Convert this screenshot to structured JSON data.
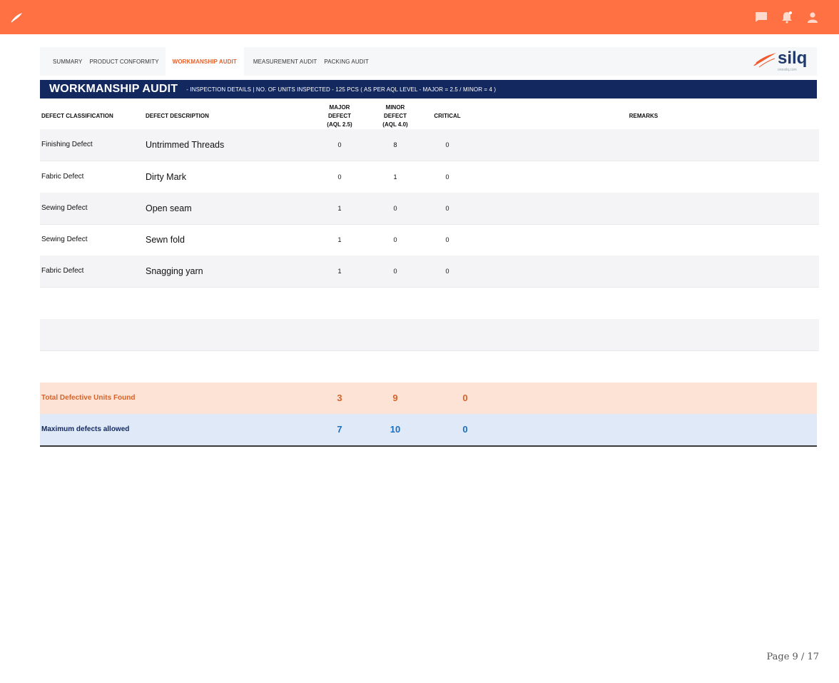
{
  "colors": {
    "accent": "#ff7043",
    "navy": "#13285e",
    "orange_text": "#d4632b",
    "blue_text": "#1a6fc0"
  },
  "topbar": {
    "icons": [
      "feather-logo-icon",
      "chat-icon",
      "notification-bell-icon",
      "user-icon"
    ]
  },
  "tabs": [
    {
      "label": "SUMMARY"
    },
    {
      "label": "PRODUCT CONFORMITY"
    },
    {
      "label": "WORKMANSHIP AUDIT",
      "active": true
    },
    {
      "label": "MEASUREMENT AUDIT"
    },
    {
      "label": "PACKING AUDIT"
    }
  ],
  "brand": {
    "name": "silq",
    "site": "onesilq.com"
  },
  "banner": {
    "title": "WORKMANSHIP AUDIT",
    "subtitle": "- INSPECTION DETAILS | NO. OF UNITS INSPECTED - 125 PCS ( AS PER AQL LEVEL - MAJOR = 2.5 / MINOR = 4 )"
  },
  "columns": {
    "classification": "DEFECT CLASSIFICATION",
    "description": "DEFECT DESCRIPTION",
    "major": [
      "MAJOR",
      "DEFECT",
      "(AQL 2.5)"
    ],
    "minor": [
      "MINOR",
      "DEFECT",
      "(AQL 4.0)"
    ],
    "critical": "CRITICAL",
    "remarks": "REMARKS"
  },
  "rows": [
    {
      "classification": "Finishing Defect",
      "description": "Untrimmed Threads",
      "major": "0",
      "minor": "8",
      "critical": "0"
    },
    {
      "classification": "Fabric Defect",
      "description": "Dirty Mark",
      "major": "0",
      "minor": "1",
      "critical": "0"
    },
    {
      "classification": "Sewing Defect",
      "description": "Open seam",
      "major": "1",
      "minor": "0",
      "critical": "0"
    },
    {
      "classification": "Sewing Defect",
      "description": "Sewn fold",
      "major": "1",
      "minor": "0",
      "critical": "0"
    },
    {
      "classification": "Fabric Defect",
      "description": "Snagging yarn",
      "major": "1",
      "minor": "0",
      "critical": "0"
    }
  ],
  "totals": {
    "label": "Total Defective Units Found",
    "major": "3",
    "minor": "9",
    "critical": "0"
  },
  "maximum": {
    "label": "Maximum defects allowed",
    "major": "7",
    "minor": "10",
    "critical": "0"
  },
  "pager": "Page 9 / 17"
}
